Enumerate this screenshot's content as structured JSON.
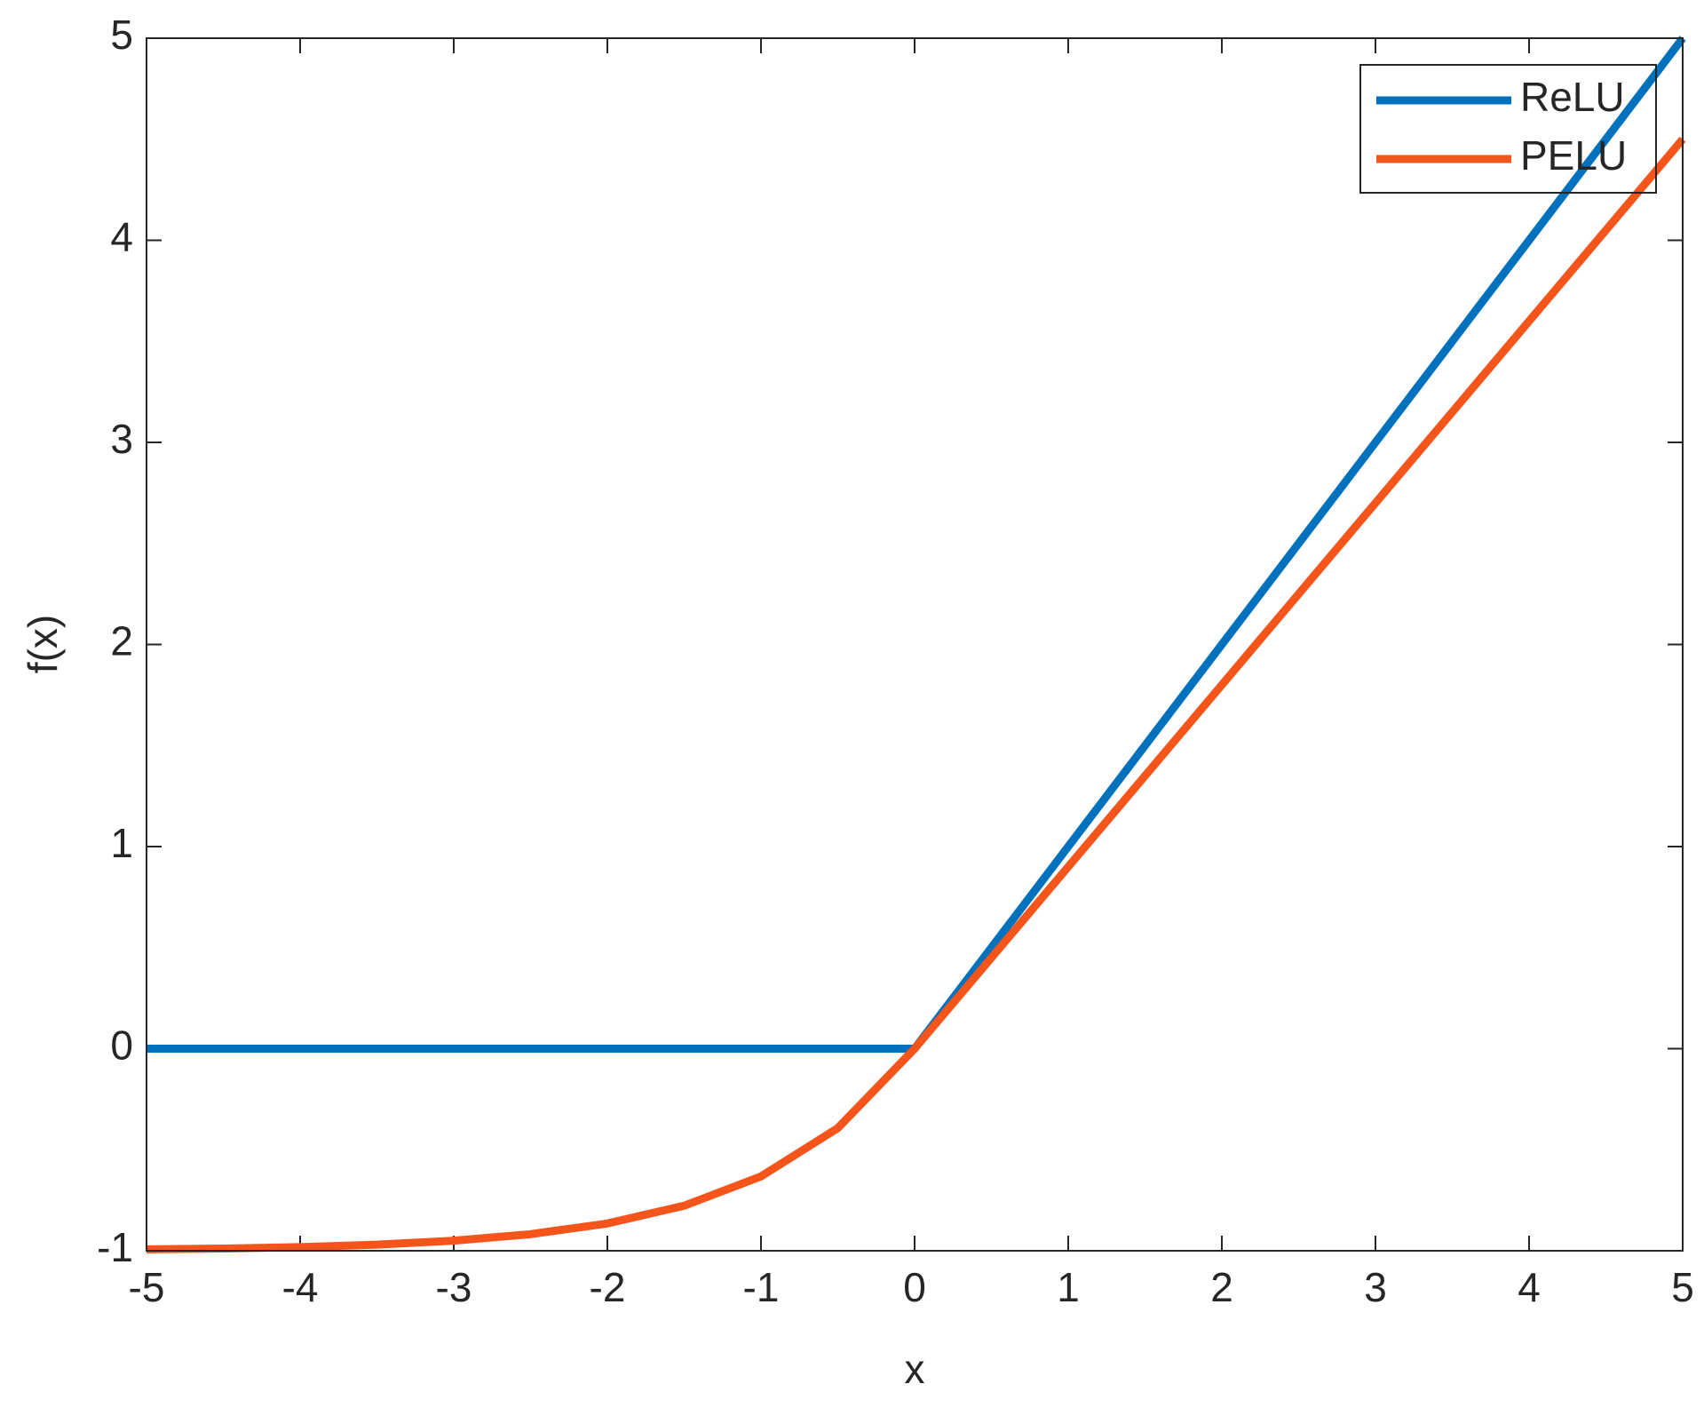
{
  "chart_data": {
    "type": "line",
    "x_label": "x",
    "y_label": "f(x)",
    "x": [
      -5,
      -4.5,
      -4,
      -3.5,
      -3,
      -2.5,
      -2,
      -1.5,
      -1,
      -0.5,
      0,
      0.5,
      1,
      1.5,
      2,
      2.5,
      3,
      3.5,
      4,
      4.5,
      5
    ],
    "series": [
      {
        "name": "ReLU",
        "color": "#0072bd",
        "values": [
          0,
          0,
          0,
          0,
          0,
          0,
          0,
          0,
          0,
          0,
          0,
          0.5,
          1,
          1.5,
          2,
          2.5,
          3,
          3.5,
          4,
          4.5,
          5
        ]
      },
      {
        "name": "PELU",
        "color": "#f5541a",
        "values": [
          -0.993,
          -0.989,
          -0.982,
          -0.97,
          -0.95,
          -0.918,
          -0.865,
          -0.777,
          -0.632,
          -0.393,
          0,
          0.45,
          0.9,
          1.35,
          1.8,
          2.25,
          2.7,
          3.15,
          3.6,
          4.05,
          4.5
        ]
      }
    ],
    "xlim": [
      -5,
      5
    ],
    "ylim": [
      -1,
      5
    ],
    "xticks": [
      -5,
      -4,
      -3,
      -2,
      -1,
      0,
      1,
      2,
      3,
      4,
      5
    ],
    "yticks": [
      -1,
      0,
      1,
      2,
      3,
      4,
      5
    ],
    "legend": "upper right",
    "grid": false
  }
}
